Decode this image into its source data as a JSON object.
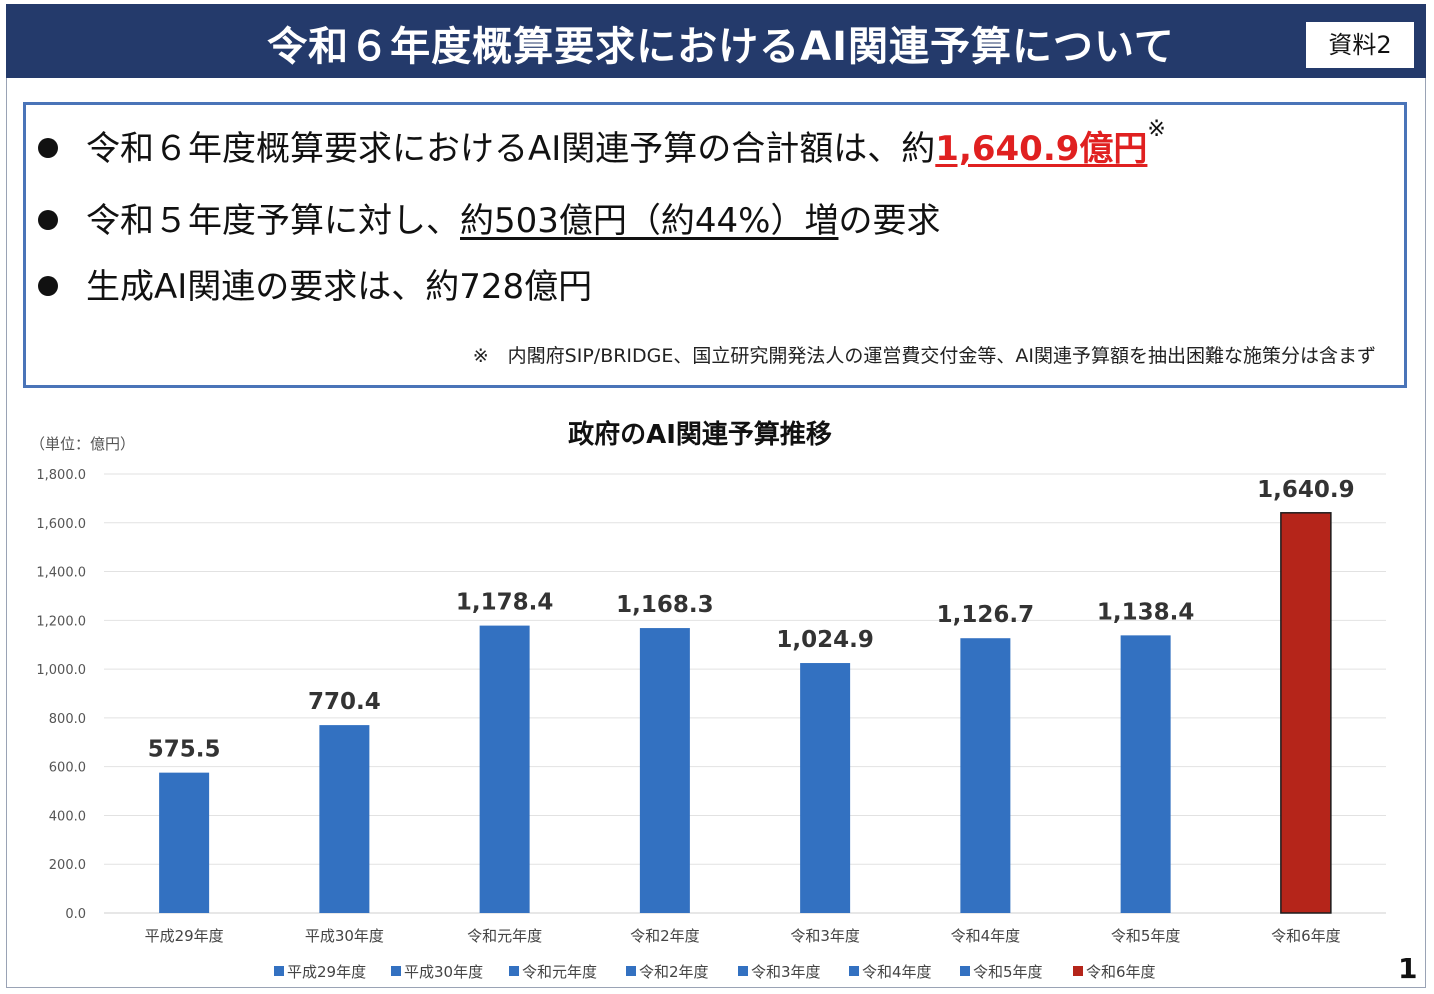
{
  "header": {
    "title": "令和６年度概算要求におけるAI関連予算について",
    "doc_label": "資料2"
  },
  "summary": {
    "bullet1_prefix": "令和６年度概算要求におけるAI関連予算の合計額は、約",
    "bullet1_amount": "1,640.9億円",
    "bullet1_mark": "※",
    "bullet2_prefix": "令和５年度予算に対し、",
    "bullet2_underlined": "約503億円（約44%）増",
    "bullet2_suffix": "の要求",
    "bullet3": "生成AI関連の要求は、約728億円",
    "footnote": "※　内閣府SIP/BRIDGE、国立研究開発法人の運営費交付金等、AI関連予算額を抽出困難な施策分は含まず"
  },
  "chart_data": {
    "type": "bar",
    "title": "政府のAI関連予算推移",
    "unit_label": "（単位：億円）",
    "categories": [
      "平成29年度",
      "平成30年度",
      "令和元年度",
      "令和2年度",
      "令和3年度",
      "令和4年度",
      "令和5年度",
      "令和6年度"
    ],
    "values": [
      575.5,
      770.4,
      1178.4,
      1168.3,
      1024.9,
      1126.7,
      1138.4,
      1640.9
    ],
    "value_labels": [
      "575.5",
      "770.4",
      "1,178.4",
      "1,168.3",
      "1,024.9",
      "1,126.7",
      "1,138.4",
      "1,640.9"
    ],
    "y_ticks": [
      "0.0",
      "200.0",
      "400.0",
      "600.0",
      "800.0",
      "1,000.0",
      "1,200.0",
      "1,400.0",
      "1,600.0",
      "1,800.0"
    ],
    "ylim": [
      0,
      1800
    ],
    "grid": true,
    "legend_position": "bottom",
    "colors": [
      "#3371c1",
      "#3371c1",
      "#3371c1",
      "#3371c1",
      "#3371c1",
      "#3371c1",
      "#3371c1",
      "#b5251a"
    ]
  },
  "page_number": "1"
}
